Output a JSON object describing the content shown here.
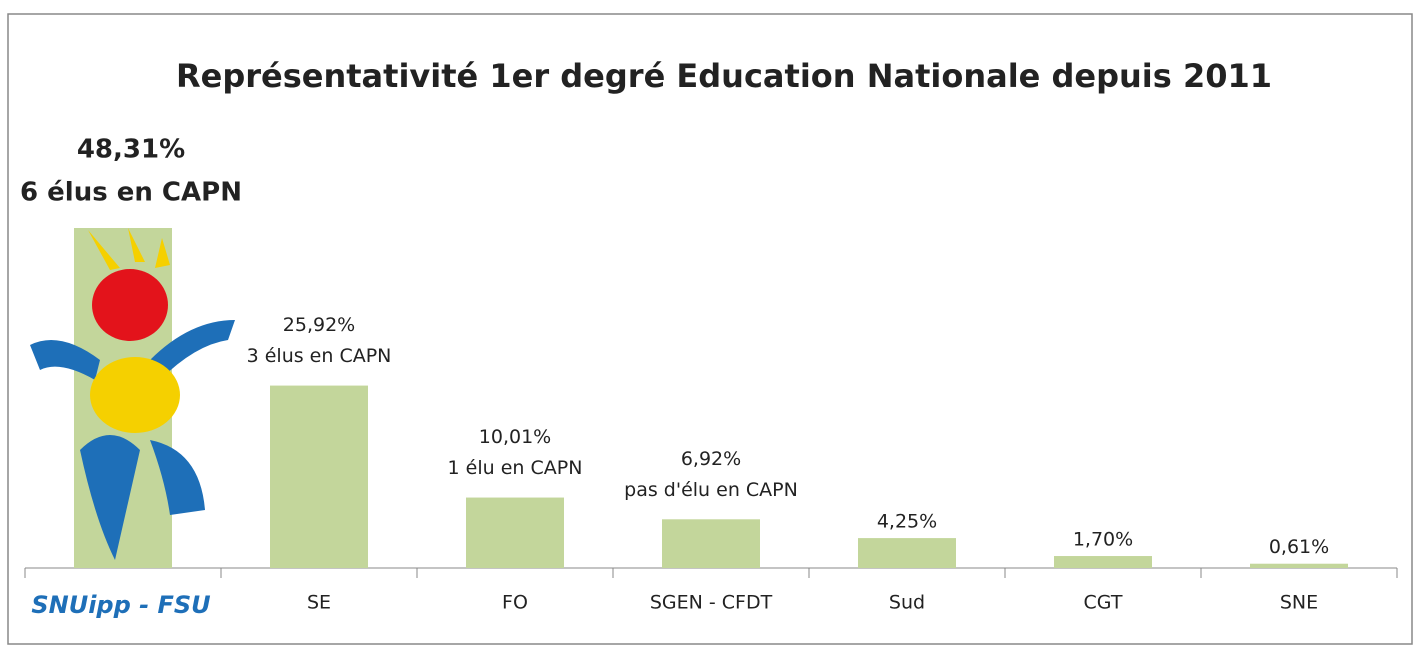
{
  "chart_data": {
    "type": "bar",
    "title": "Représentativité 1er degré Education Nationale  depuis 2011",
    "categories": [
      "SNUipp - FSU",
      "SE",
      "FO",
      "SGEN - CFDT",
      "Sud",
      "CGT",
      "SNE"
    ],
    "values": [
      48.31,
      25.92,
      10.01,
      6.92,
      4.25,
      1.7,
      0.61
    ],
    "value_labels": [
      "48,31%",
      "25,92%",
      "10,01%",
      "6,92%",
      "4,25%",
      "1,70%",
      "0,61%"
    ],
    "annotations": [
      "6 élus en CAPN",
      "3 élus en CAPN",
      "1 élu en CAPN",
      "pas d'élu en CAPN",
      null,
      null,
      null
    ],
    "color": "#c3d69b"
  }
}
